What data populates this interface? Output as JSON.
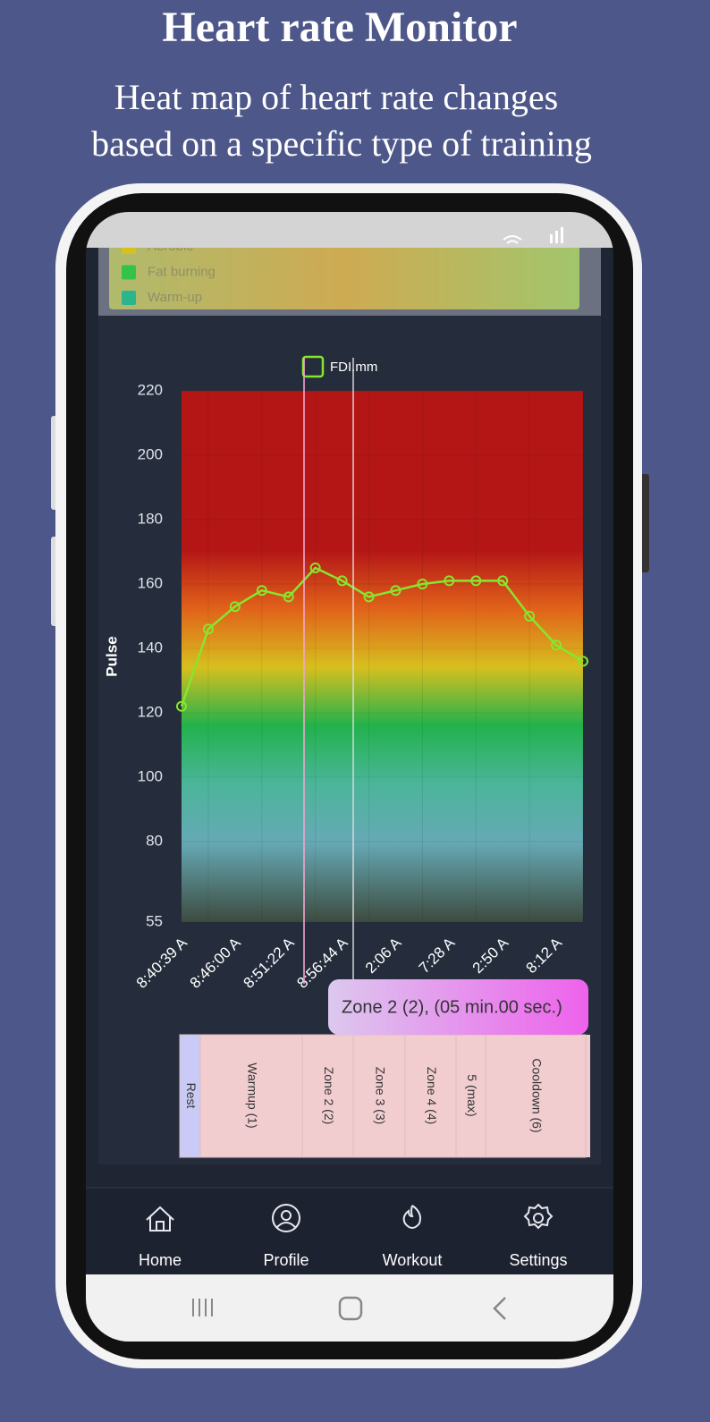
{
  "header": {
    "title": "Heart rate Monitor",
    "subtitle": [
      "Heat map of heart rate changes",
      "based on a specific type of training"
    ]
  },
  "legend_panel": {
    "items": [
      "Aerobic",
      "Fat burning",
      "Warm-up"
    ]
  },
  "chart_data": {
    "type": "line",
    "y_label": "Pulse",
    "categories": [
      "8:40:39 A",
      null,
      "8:46:00 A",
      null,
      "8:51:22 A",
      null,
      "8:56:44 A",
      null,
      "2:06 A",
      null,
      "7:28 A",
      null,
      "2:50 A",
      null,
      "8:12 A",
      null
    ],
    "series": [
      {
        "name": "FDI.mm",
        "color": "#86e62e",
        "values": [
          122,
          146,
          153,
          158,
          156,
          165,
          161,
          156,
          158,
          160,
          161,
          161,
          161,
          150,
          141,
          136
        ]
      }
    ],
    "ylim": [
      55,
      220
    ],
    "yticks": [
      55,
      80,
      100,
      120,
      140,
      160,
      180,
      200,
      220
    ],
    "grid": true
  },
  "tooltip": "Zone 2 (2), (05 min.00 sec.)",
  "zones": [
    "Rest",
    "Warmup (1)",
    "Zone 2 (2)",
    "Zone 3 (3)",
    "Zone 4 (4)",
    "5 (max)",
    "Cooldown (6)"
  ],
  "nav": [
    "Home",
    "Profile",
    "Workout",
    "Settings"
  ]
}
